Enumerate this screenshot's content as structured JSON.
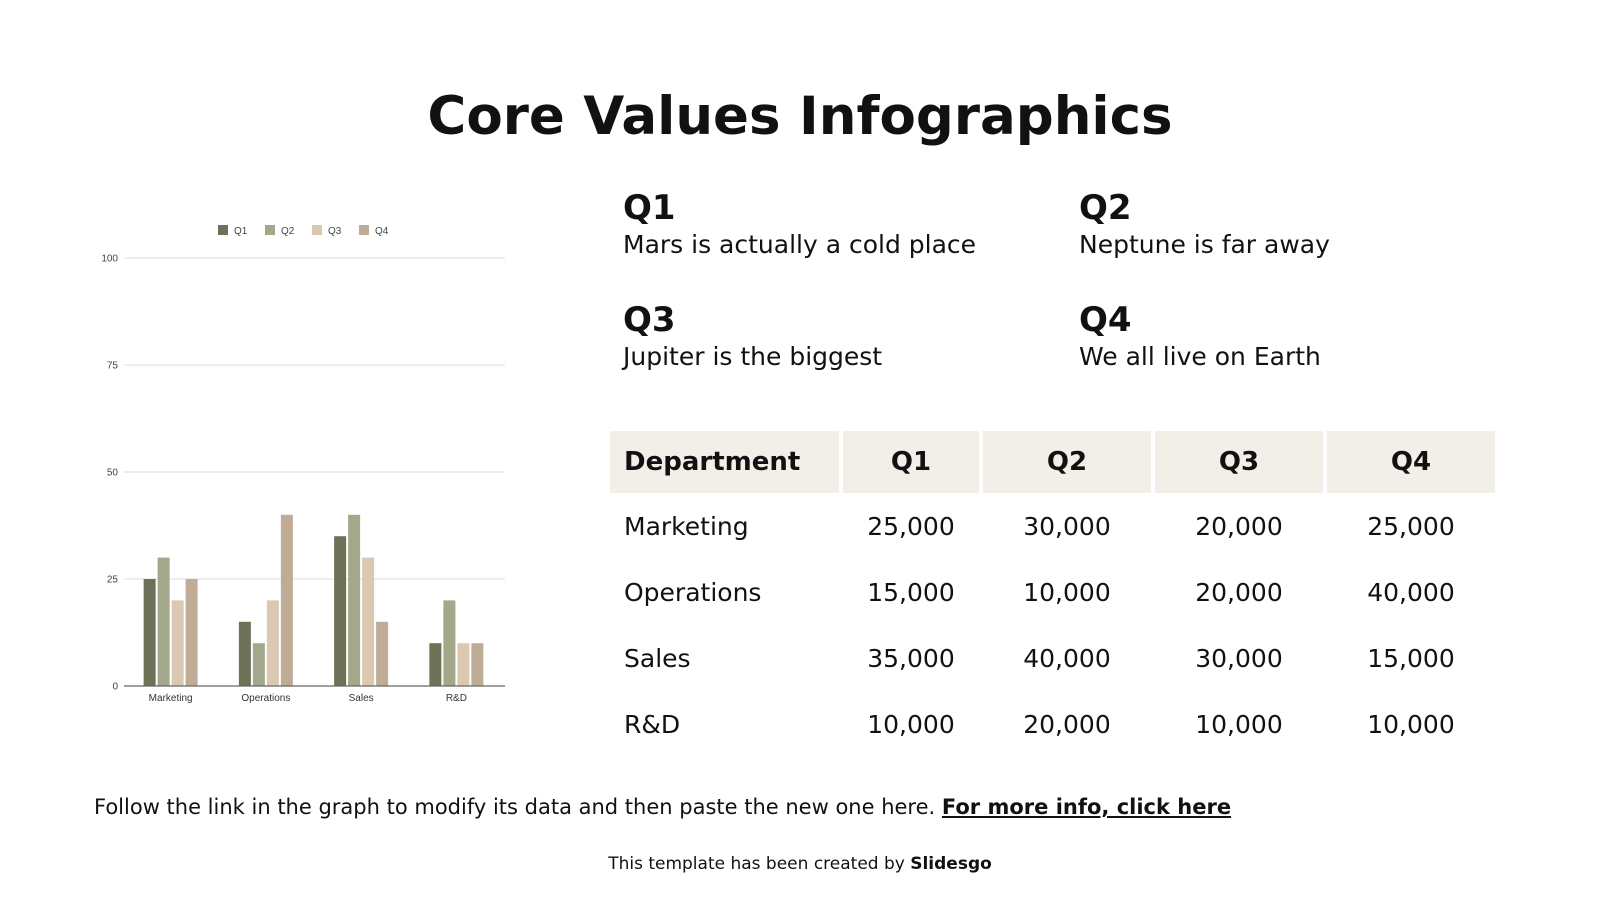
{
  "title": "Core Values Infographics",
  "quarters": [
    {
      "label": "Q1",
      "text": "Mars is actually a cold place"
    },
    {
      "label": "Q2",
      "text": "Neptune is far away"
    },
    {
      "label": "Q3",
      "text": "Jupiter is the biggest"
    },
    {
      "label": "Q4",
      "text": "We all live on Earth"
    }
  ],
  "table": {
    "headers": [
      "Department",
      "Q1",
      "Q2",
      "Q3",
      "Q4"
    ],
    "rows": [
      [
        "Marketing",
        "25,000",
        "30,000",
        "20,000",
        "25,000"
      ],
      [
        "Operations",
        "15,000",
        "10,000",
        "20,000",
        "40,000"
      ],
      [
        "Sales",
        "35,000",
        "40,000",
        "30,000",
        "15,000"
      ],
      [
        "R&D",
        "10,000",
        "20,000",
        "10,000",
        "10,000"
      ]
    ]
  },
  "footer": {
    "text": "Follow the link in the graph to modify its data and then paste the new one here.",
    "link": "For more info, click here"
  },
  "credit": {
    "text": "This template has been created by",
    "brand": "Slidesgo"
  },
  "chart_data": {
    "type": "bar",
    "categories": [
      "Marketing",
      "Operations",
      "Sales",
      "R&D"
    ],
    "series": [
      {
        "name": "Q1",
        "values": [
          25,
          15,
          35,
          10
        ],
        "color": "#6f7058"
      },
      {
        "name": "Q2",
        "values": [
          30,
          10,
          40,
          20
        ],
        "color": "#a4a88a"
      },
      {
        "name": "Q3",
        "values": [
          20,
          20,
          30,
          10
        ],
        "color": "#dbc8b0"
      },
      {
        "name": "Q4",
        "values": [
          25,
          40,
          15,
          10
        ],
        "color": "#bfac96"
      }
    ],
    "yticks": [
      0,
      25,
      50,
      75,
      100
    ],
    "ylim": [
      0,
      100
    ],
    "grid": true,
    "legend": "top"
  }
}
